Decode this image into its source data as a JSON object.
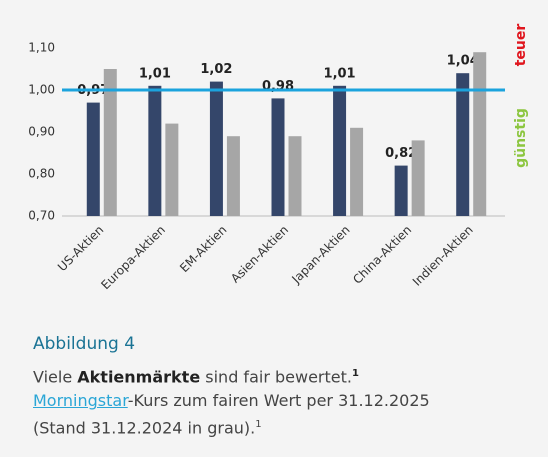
{
  "chart_data": {
    "type": "bar",
    "categories": [
      "US-Aktien",
      "Europa-Aktien",
      "EM-Aktien",
      "Asien-Aktien",
      "Japan-Aktien",
      "China-Aktien",
      "Indien-Aktien"
    ],
    "series": [
      {
        "color": "#34466a",
        "values": [
          0.97,
          1.01,
          1.02,
          0.98,
          1.01,
          0.82,
          1.04
        ],
        "value_labels": [
          "0,97",
          "1,01",
          "1,02",
          "0,98",
          "1,01",
          "0,82",
          "1,04"
        ]
      },
      {
        "color": "#a6a6a6",
        "values": [
          1.05,
          0.92,
          0.89,
          0.89,
          0.91,
          0.88,
          1.09
        ]
      }
    ],
    "ylim": [
      0.7,
      1.1
    ],
    "yticks": [
      {
        "value": 0.7,
        "label": "0,70"
      },
      {
        "value": 0.8,
        "label": "0,80"
      },
      {
        "value": 0.9,
        "label": "0,90"
      },
      {
        "value": 1.0,
        "label": "1,00"
      },
      {
        "value": 1.1,
        "label": "1,10"
      }
    ],
    "reference_line": {
      "value": 1.0,
      "color": "#1ba3dd"
    },
    "side_labels": [
      {
        "text": "teuer",
        "color": "#e0161e"
      },
      {
        "text": "günstig",
        "color": "#8cc63f"
      }
    ],
    "grid": false
  },
  "caption": {
    "title": "Abbildung 4",
    "line1": [
      "Viele",
      "Aktienmärkte",
      "sind fair bewertet.",
      "1"
    ],
    "link": "Morningstar",
    "line2": "-Kurs zum fairen Wert per 31.12.2025",
    "line3": "(Stand 31.12.2024 in grau).",
    "footnote": "1"
  }
}
